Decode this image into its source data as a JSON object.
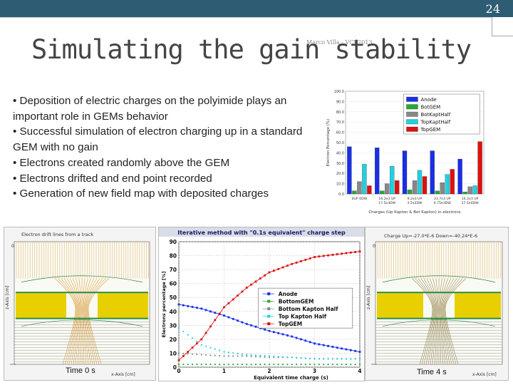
{
  "slide": {
    "number": "24",
    "title": "Simulating the gain stability",
    "author": "Marco Villa - VCI 2013"
  },
  "bullets": [
    "• Deposition of electric charges on the polyimide plays an important role in GEMs behavior",
    "• Successful simulation of electron charging up in a standard GEM with no gain",
    "• Electrons created randomly above the GEM",
    "• Electrons drifted and end point recorded",
    "• Generation of new field map with deposited charges"
  ],
  "left_panel": {
    "title": "Electron drift lines from a track",
    "z_axis": "z-Axis [cm]",
    "x_axis": "x-Axis [cm]",
    "caption": "Time 0 s"
  },
  "right_panel": {
    "title": "Charge Up=-27.0*E-6 Down=-40.24*E-6",
    "z_axis": "z-Axis [cm]",
    "x_axis": "x-Axis [cm]",
    "caption": "Time 4 s"
  },
  "colors": {
    "anode": "#1a2ee8",
    "bot_gem": "#22aa33",
    "bot_kapton": "#888888",
    "top_kapton": "#22d0e0",
    "top_gem": "#dd1111",
    "kapton": "#e8d000",
    "drift_line": "#d8a040"
  },
  "chart_data": [
    {
      "type": "bar",
      "title": "",
      "xlabel": "Charges (Up Kapton & Bot Kapton) in electrons",
      "ylabel": "Electron Percentage (%)",
      "ylim": [
        0,
        100
      ],
      "yticks": [
        "0.0",
        "10.0",
        "20.0",
        "30.0",
        "40.0",
        "50.0",
        "60.0",
        "70.0",
        "80.0",
        "90.0",
        "100.0"
      ],
      "categories": [
        "0UP 0DW",
        "16.2e3 UP 17.5e3DW",
        "9.2e3 UP 3.5e3DW",
        "23.7e3 UP 6.75e3DW",
        "16.2e3 UP 17.5e4DW"
      ],
      "series": [
        {
          "name": "Anode",
          "values": [
            46,
            45,
            42,
            42,
            34
          ]
        },
        {
          "name": "BotGEM",
          "values": [
            3,
            3,
            4,
            3,
            2
          ]
        },
        {
          "name": "BotKaptHalf",
          "values": [
            12,
            10,
            13,
            11,
            7
          ]
        },
        {
          "name": "TopKaptHalf",
          "values": [
            29,
            27,
            23,
            19,
            8
          ]
        },
        {
          "name": "TopGEM",
          "values": [
            8,
            13,
            17,
            24,
            51
          ]
        }
      ]
    },
    {
      "type": "scatter",
      "title": "Iterative method with \"0.1s equivalent\" charge step",
      "xlabel": "Equivalent time charge (s)",
      "ylabel": "Electrons percentage [%]",
      "xlim": [
        0,
        4
      ],
      "ylim": [
        0,
        90
      ],
      "xticks": [
        "0",
        "1",
        "2",
        "3",
        "4"
      ],
      "yticks": [
        "0",
        "10",
        "20",
        "30",
        "40",
        "50",
        "60",
        "70",
        "80",
        "90"
      ],
      "legend_position": "center-right",
      "series": [
        {
          "name": "Anode",
          "x": [
            0,
            0.5,
            1,
            1.5,
            2,
            2.5,
            3,
            3.5,
            4
          ],
          "y": [
            45,
            42,
            37,
            31,
            26,
            22,
            17,
            14,
            11
          ]
        },
        {
          "name": "BottomGEM",
          "x": [
            0,
            0.5,
            1,
            1.5,
            2,
            2.5,
            3,
            3.5,
            4
          ],
          "y": [
            2,
            2,
            2,
            2,
            2,
            2,
            2,
            2,
            2
          ]
        },
        {
          "name": "Bottom Kapton Half",
          "x": [
            0,
            0.5,
            1,
            1.5,
            2,
            2.5,
            3,
            3.5,
            4
          ],
          "y": [
            10,
            9,
            8,
            8,
            7,
            7,
            6,
            6,
            6
          ]
        },
        {
          "name": "Top Kapton Half",
          "x": [
            0,
            0.5,
            1,
            1.5,
            2,
            2.5,
            3,
            3.5,
            4
          ],
          "y": [
            28,
            16,
            11,
            9,
            8,
            7,
            6,
            6,
            6
          ]
        },
        {
          "name": "TopGEM",
          "x": [
            0,
            0.5,
            1,
            1.5,
            2,
            2.5,
            3,
            3.5,
            4
          ],
          "y": [
            5,
            20,
            43,
            57,
            68,
            74,
            79,
            81,
            83
          ]
        }
      ]
    }
  ]
}
